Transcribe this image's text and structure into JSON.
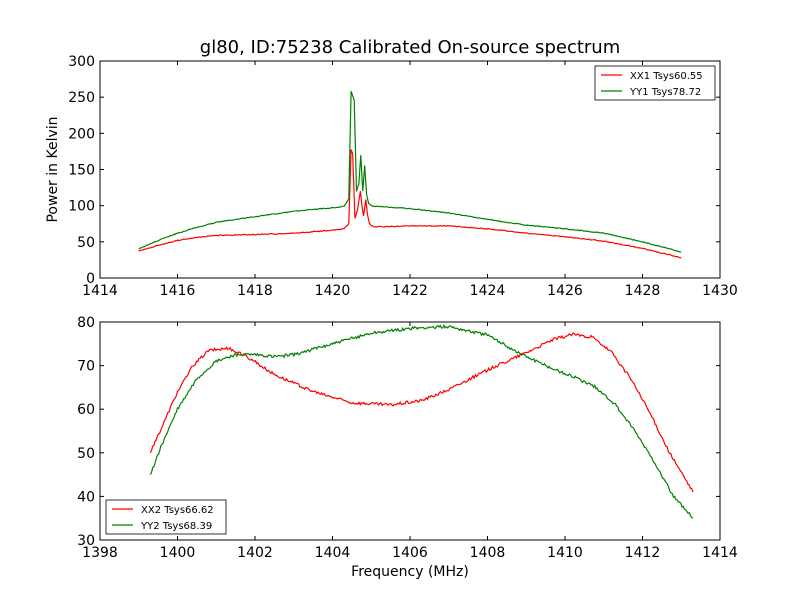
{
  "figure": {
    "title": "gl80, ID:75238 Calibrated On-source spectrum"
  },
  "chart_data": [
    {
      "type": "line",
      "title": "gl80, ID:75238 Calibrated On-source spectrum",
      "xlabel": "",
      "ylabel": "Power in Kelvin",
      "xlim": [
        1414,
        1430
      ],
      "ylim": [
        0,
        300
      ],
      "xticks": [
        1414,
        1416,
        1418,
        1420,
        1422,
        1424,
        1426,
        1428,
        1430
      ],
      "yticks": [
        0,
        50,
        100,
        150,
        200,
        250,
        300
      ],
      "grid": false,
      "legend_position": "top-right",
      "series": [
        {
          "name": "XX1 Tsys60.55",
          "color": "#ff0000",
          "x": [
            1415.0,
            1415.5,
            1416.0,
            1416.5,
            1417.0,
            1418.0,
            1419.0,
            1419.5,
            1420.0,
            1420.3,
            1420.42,
            1420.48,
            1420.52,
            1420.58,
            1420.65,
            1420.72,
            1420.76,
            1420.8,
            1420.86,
            1420.9,
            1420.95,
            1421.0,
            1421.1,
            1421.5,
            1422.0,
            1422.5,
            1423.0,
            1424.0,
            1425.0,
            1426.0,
            1427.0,
            1428.0,
            1429.0
          ],
          "y": [
            37,
            45,
            52,
            56,
            59,
            60,
            62,
            64,
            66,
            68,
            75,
            178,
            172,
            82,
            95,
            120,
            100,
            86,
            108,
            88,
            76,
            72,
            71,
            71,
            72,
            72,
            72,
            68,
            62,
            57,
            51,
            41,
            28
          ]
        },
        {
          "name": "YY1 Tsys78.72",
          "color": "#008000",
          "x": [
            1415.0,
            1415.5,
            1416.0,
            1416.5,
            1417.0,
            1418.0,
            1419.0,
            1419.5,
            1420.0,
            1420.3,
            1420.42,
            1420.48,
            1420.52,
            1420.56,
            1420.62,
            1420.68,
            1420.73,
            1420.78,
            1420.83,
            1420.88,
            1420.93,
            1421.0,
            1421.1,
            1421.5,
            1422.0,
            1423.0,
            1424.0,
            1425.0,
            1426.0,
            1427.0,
            1428.0,
            1429.0
          ],
          "y": [
            40,
            52,
            62,
            70,
            77,
            85,
            92,
            95,
            97,
            99,
            110,
            258,
            252,
            245,
            120,
            130,
            170,
            120,
            155,
            115,
            103,
            100,
            99,
            98,
            96,
            90,
            81,
            73,
            68,
            62,
            50,
            36
          ]
        }
      ]
    },
    {
      "type": "line",
      "title": "",
      "xlabel": "Frequency (MHz)",
      "ylabel": "",
      "xlim": [
        1398,
        1414
      ],
      "ylim": [
        30,
        80
      ],
      "xticks": [
        1398,
        1400,
        1402,
        1404,
        1406,
        1408,
        1410,
        1412,
        1414
      ],
      "yticks": [
        30,
        40,
        50,
        60,
        70,
        80
      ],
      "grid": false,
      "legend_position": "bottom-left",
      "series": [
        {
          "name": "XX2 Tsys66.62",
          "color": "#ff0000",
          "x": [
            1399.3,
            1399.6,
            1400.0,
            1400.4,
            1400.8,
            1401.3,
            1401.8,
            1402.5,
            1403.5,
            1404.5,
            1405.5,
            1406.3,
            1407.0,
            1408.0,
            1409.0,
            1409.7,
            1410.2,
            1410.7,
            1411.2,
            1411.7,
            1412.2,
            1412.7,
            1413.3
          ],
          "y": [
            50,
            56,
            64,
            70,
            73.5,
            74,
            72,
            68,
            64,
            61.5,
            61,
            62,
            64.5,
            69,
            73,
            76,
            77.2,
            76.5,
            73,
            67,
            59,
            50,
            41
          ]
        },
        {
          "name": "YY2 Tsys68.39",
          "color": "#008000",
          "x": [
            1399.3,
            1399.6,
            1400.0,
            1400.5,
            1401.0,
            1401.5,
            1402.0,
            1402.5,
            1403.0,
            1404.0,
            1405.0,
            1406.0,
            1407.0,
            1408.0,
            1408.8,
            1409.5,
            1410.2,
            1410.8,
            1411.3,
            1411.8,
            1412.3,
            1412.8,
            1413.3
          ],
          "y": [
            45,
            52,
            60,
            67,
            71,
            72.5,
            72.5,
            72,
            72.5,
            75,
            77.5,
            78.5,
            79,
            77,
            73,
            70,
            67.5,
            65,
            61,
            55,
            48,
            40,
            35
          ]
        }
      ]
    }
  ]
}
